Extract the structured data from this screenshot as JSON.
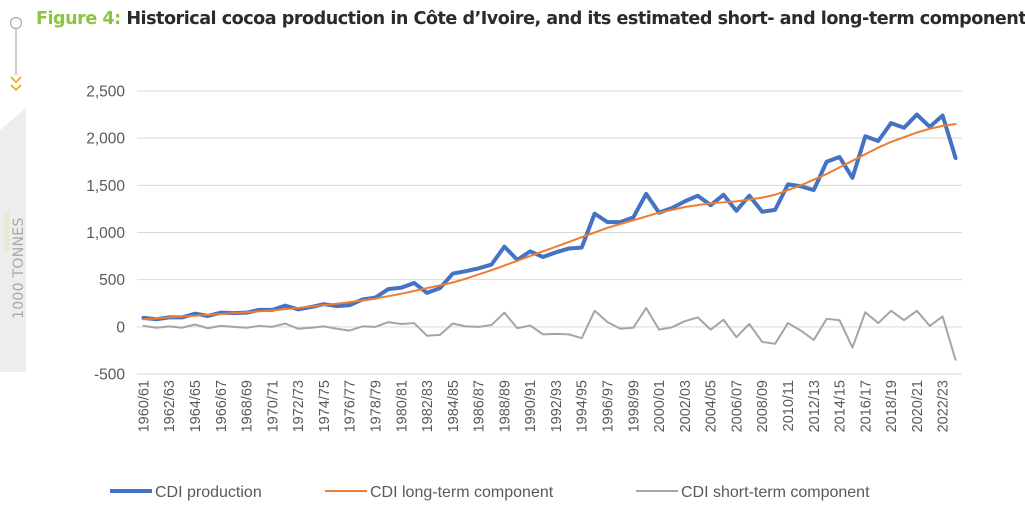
{
  "figure": {
    "label": "Figure 4:",
    "text": "Historical cocoa production in Côte d’Ivoire, and its estimated short- and long-term components"
  },
  "side_label": "1000 TONNES",
  "colors": {
    "accent": "#8cc63f",
    "arrow": "#f5a623",
    "production": "#4472c4",
    "long_term": "#ed7d31",
    "short_term": "#a5a5a5",
    "grid": "#d9d9d9",
    "tick_text": "#595959"
  },
  "chart_data": {
    "type": "line",
    "title": "",
    "xlabel": "",
    "ylabel": "1000 TONNES",
    "ylim": [
      -500,
      2500
    ],
    "yticks": [
      -500,
      0,
      500,
      1000,
      1500,
      2000,
      2500
    ],
    "ytick_labels": [
      "-500",
      "0",
      "500",
      "1,000",
      "1,500",
      "2,000",
      "2,500"
    ],
    "grid": "horizontal",
    "legend_position": "bottom",
    "x": [
      "1960/61",
      "1961/62",
      "1962/63",
      "1963/64",
      "1964/65",
      "1965/66",
      "1966/67",
      "1967/68",
      "1968/69",
      "1969/70",
      "1970/71",
      "1971/72",
      "1972/73",
      "1973/74",
      "1974/75",
      "1975/76",
      "1976/77",
      "1977/78",
      "1978/79",
      "1979/80",
      "1980/81",
      "1981/82",
      "1982/83",
      "1983/84",
      "1984/85",
      "1985/86",
      "1986/87",
      "1987/88",
      "1988/89",
      "1989/90",
      "1990/91",
      "1991/92",
      "1992/93",
      "1993/94",
      "1994/95",
      "1995/96",
      "1996/97",
      "1997/98",
      "1998/99",
      "1999/00",
      "2000/01",
      "2001/02",
      "2002/03",
      "2003/04",
      "2004/05",
      "2005/06",
      "2006/07",
      "2007/08",
      "2008/09",
      "2009/10",
      "2010/11",
      "2011/12",
      "2012/13",
      "2013/14",
      "2014/15",
      "2015/16",
      "2016/17",
      "2017/18",
      "2018/19",
      "2019/20",
      "2020/21",
      "2021/22",
      "2022/23",
      "2023/24"
    ],
    "xtick_labels": [
      "1960/61",
      "1962/63",
      "1964/65",
      "1966/67",
      "1968/69",
      "1970/71",
      "1972/73",
      "1974/75",
      "1976/77",
      "1978/79",
      "1980/81",
      "1982/83",
      "1984/85",
      "1986/87",
      "1988/89",
      "1990/91",
      "1992/93",
      "1994/95",
      "1996/97",
      "1998/99",
      "2000/01",
      "2002/03",
      "2004/05",
      "2006/07",
      "2008/09",
      "2010/11",
      "2012/13",
      "2014/15",
      "2016/17",
      "2018/19",
      "2020/21",
      "2022/23"
    ],
    "series": [
      {
        "name": "CDI production",
        "color": "#4472c4",
        "values": [
          95,
          80,
          100,
          100,
          140,
          115,
          150,
          145,
          150,
          180,
          180,
          225,
          185,
          210,
          240,
          220,
          230,
          290,
          310,
          400,
          415,
          465,
          360,
          410,
          565,
          590,
          620,
          660,
          850,
          710,
          800,
          740,
          790,
          830,
          840,
          1200,
          1110,
          1110,
          1160,
          1410,
          1210,
          1260,
          1330,
          1390,
          1290,
          1400,
          1230,
          1390,
          1220,
          1240,
          1510,
          1490,
          1450,
          1750,
          1800,
          1580,
          2020,
          1970,
          2160,
          2110,
          2250,
          2120,
          2240,
          1790
        ]
      },
      {
        "name": "CDI long-term component",
        "color": "#ed7d31",
        "values": [
          80,
          90,
          100,
          110,
          118,
          127,
          136,
          145,
          155,
          165,
          175,
          188,
          200,
          215,
          230,
          245,
          262,
          280,
          300,
          325,
          350,
          380,
          410,
          440,
          470,
          510,
          555,
          600,
          650,
          700,
          750,
          800,
          850,
          900,
          950,
          1000,
          1050,
          1090,
          1130,
          1170,
          1210,
          1240,
          1270,
          1290,
          1310,
          1320,
          1330,
          1350,
          1370,
          1400,
          1450,
          1500,
          1560,
          1620,
          1690,
          1760,
          1830,
          1900,
          1960,
          2010,
          2060,
          2100,
          2130,
          2150
        ]
      },
      {
        "name": "CDI short-term component",
        "color": "#a5a5a5",
        "values": [
          10,
          -10,
          5,
          -10,
          25,
          -15,
          10,
          0,
          -10,
          10,
          0,
          35,
          -20,
          -10,
          5,
          -20,
          -40,
          5,
          0,
          50,
          30,
          40,
          -95,
          -85,
          35,
          5,
          0,
          20,
          150,
          -15,
          15,
          -80,
          -75,
          -80,
          -120,
          170,
          50,
          -20,
          -10,
          200,
          -30,
          -5,
          60,
          100,
          -30,
          75,
          -110,
          30,
          -160,
          -180,
          40,
          -40,
          -140,
          85,
          70,
          -220,
          155,
          40,
          170,
          70,
          170,
          10,
          110,
          -350
        ]
      }
    ]
  }
}
